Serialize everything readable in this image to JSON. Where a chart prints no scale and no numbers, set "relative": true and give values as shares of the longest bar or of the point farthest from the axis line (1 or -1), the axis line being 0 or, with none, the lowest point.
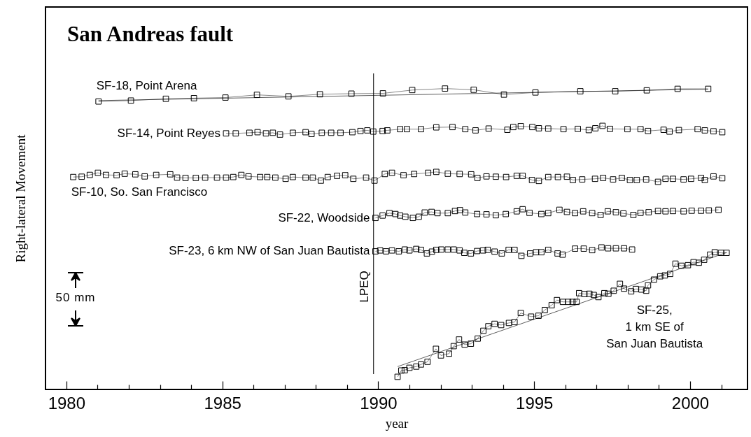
{
  "chart_data": {
    "type": "line",
    "title": "San Andreas fault",
    "xlabel": "year",
    "ylabel": "Right-lateral Movement",
    "relative": true,
    "marker": "square",
    "xlim": [
      1979.33,
      2001.84
    ],
    "xticks": [
      1980,
      {
        "value": 1981,
        "label": null
      },
      {
        "value": 1982,
        "label": null
      },
      {
        "value": 1983,
        "label": null
      },
      {
        "value": 1984,
        "label": null
      },
      1985,
      {
        "value": 1986,
        "label": null
      },
      {
        "value": 1987,
        "label": null
      },
      {
        "value": 1988,
        "label": null
      },
      {
        "value": 1989,
        "label": null
      },
      1990,
      {
        "value": 1991,
        "label": null
      },
      {
        "value": 1992,
        "label": null
      },
      {
        "value": 1993,
        "label": null
      },
      {
        "value": 1994,
        "label": null
      },
      1995,
      {
        "value": 1996,
        "label": null
      },
      {
        "value": 1997,
        "label": null
      },
      {
        "value": 1998,
        "label": null
      },
      {
        "value": 1999,
        "label": null
      },
      2000,
      {
        "value": 2001,
        "label": null
      }
    ],
    "ref_lines": [
      {
        "axis": "x",
        "value": 1989.85,
        "label": "LPEQ"
      }
    ],
    "annotations": [
      "50 mm"
    ],
    "series": [
      {
        "name": "SF-18, Point Arena",
        "color": "#000000",
        "x": [
          1981.03,
          1982.07,
          1983.19,
          1984.09,
          1985.1,
          1986.11,
          1987.12,
          1988.13,
          1989.14,
          1990.15,
          1991.09,
          1992.14,
          1993.06,
          1994.03,
          1995.04,
          1996.48,
          1997.6,
          1998.61,
          1999.6,
          2000.58
        ],
        "values": [
          0.957,
          0.96,
          0.966,
          0.968,
          0.97,
          0.979,
          0.974,
          0.981,
          0.983,
          0.984,
          0.995,
          1,
          0.996,
          0.98,
          0.987,
          0.991,
          0.991,
          0.994,
          0.999,
          0.999
        ]
      },
      {
        "name": "SF-14, Point Reyes",
        "color": "#000000",
        "x": [
          1985.12,
          1985.43,
          1985.87,
          1986.13,
          1986.4,
          1986.62,
          1986.85,
          1987.26,
          1987.67,
          1987.86,
          1988.19,
          1988.49,
          1988.79,
          1989.17,
          1989.43,
          1989.65,
          1989.84,
          1990.14,
          1990.29,
          1990.7,
          1990.92,
          1991.37,
          1991.86,
          1992.38,
          1992.79,
          1993.12,
          1993.54,
          1994.14,
          1994.33,
          1994.57,
          1994.94,
          1995.15,
          1995.45,
          1995.94,
          1996.4,
          1996.75,
          1996.96,
          1997.19,
          1997.43,
          1997.99,
          1998.41,
          1998.65,
          1999.15,
          1999.34,
          1999.64,
          2000.24,
          2000.47,
          2000.75,
          2001.03
        ],
        "values": [
          0.851,
          0.851,
          0.853,
          0.855,
          0.851,
          0.853,
          0.847,
          0.853,
          0.855,
          0.849,
          0.853,
          0.853,
          0.853,
          0.855,
          0.859,
          0.861,
          0.857,
          0.859,
          0.861,
          0.865,
          0.865,
          0.865,
          0.871,
          0.872,
          0.865,
          0.861,
          0.867,
          0.863,
          0.872,
          0.875,
          0.872,
          0.868,
          0.867,
          0.865,
          0.866,
          0.862,
          0.868,
          0.876,
          0.866,
          0.865,
          0.865,
          0.859,
          0.863,
          0.857,
          0.862,
          0.865,
          0.861,
          0.858,
          0.855
        ]
      },
      {
        "name": "SF-10, So. San Francisco",
        "color": "#000000",
        "x": [
          1980.22,
          1980.49,
          1980.75,
          1981.01,
          1981.27,
          1981.61,
          1981.87,
          1982.21,
          1982.51,
          1982.88,
          1983.33,
          1983.55,
          1983.82,
          1984.15,
          1984.45,
          1984.83,
          1985.12,
          1985.35,
          1985.61,
          1985.84,
          1986.21,
          1986.44,
          1986.7,
          1987.03,
          1987.26,
          1987.67,
          1987.9,
          1988.16,
          1988.38,
          1988.68,
          1988.94,
          1989.2,
          1989.61,
          1989.88,
          1990.21,
          1990.44,
          1990.81,
          1991.15,
          1991.6,
          1991.86,
          1992.23,
          1992.61,
          1992.98,
          1993.18,
          1993.47,
          1993.77,
          1994.1,
          1994.44,
          1994.63,
          1994.93,
          1995.15,
          1995.45,
          1995.76,
          1996.05,
          1996.24,
          1996.54,
          1996.95,
          1997.21,
          1997.53,
          1997.81,
          1998.07,
          1998.29,
          1998.59,
          1998.97,
          1999.21,
          1999.45,
          1999.79,
          2000.03,
          2000.35,
          2000.47,
          2000.75,
          2001.03
        ],
        "values": [
          0.706,
          0.707,
          0.713,
          0.72,
          0.713,
          0.712,
          0.717,
          0.715,
          0.708,
          0.713,
          0.715,
          0.704,
          0.703,
          0.703,
          0.704,
          0.704,
          0.704,
          0.706,
          0.713,
          0.708,
          0.706,
          0.706,
          0.704,
          0.7,
          0.706,
          0.704,
          0.704,
          0.694,
          0.706,
          0.71,
          0.712,
          0.7,
          0.704,
          0.694,
          0.716,
          0.72,
          0.712,
          0.716,
          0.72,
          0.723,
          0.717,
          0.716,
          0.715,
          0.703,
          0.708,
          0.707,
          0.706,
          0.71,
          0.71,
          0.696,
          0.693,
          0.706,
          0.706,
          0.707,
          0.696,
          0.698,
          0.7,
          0.703,
          0.698,
          0.703,
          0.696,
          0.696,
          0.698,
          0.69,
          0.7,
          0.7,
          0.698,
          0.7,
          0.703,
          0.696,
          0.708,
          0.702
        ]
      },
      {
        "name": "SF-22, Woodside",
        "color": "#000000",
        "x": [
          1989.91,
          1990.14,
          1990.36,
          1990.55,
          1990.7,
          1990.87,
          1991.11,
          1991.3,
          1991.49,
          1991.71,
          1991.9,
          1992.23,
          1992.46,
          1992.62,
          1992.79,
          1993.17,
          1993.47,
          1993.77,
          1994.09,
          1994.44,
          1994.63,
          1994.85,
          1995.23,
          1995.45,
          1995.81,
          1996.05,
          1996.31,
          1996.57,
          1996.86,
          1997.13,
          1997.36,
          1997.62,
          1997.86,
          1998.18,
          1998.41,
          1998.67,
          1998.97,
          1999.21,
          1999.45,
          1999.79,
          2000.05,
          2000.35,
          2000.6,
          2000.91
        ],
        "values": [
          0.57,
          0.578,
          0.586,
          0.583,
          0.578,
          0.574,
          0.57,
          0.574,
          0.588,
          0.59,
          0.586,
          0.586,
          0.593,
          0.596,
          0.588,
          0.583,
          0.582,
          0.579,
          0.583,
          0.592,
          0.599,
          0.587,
          0.583,
          0.586,
          0.597,
          0.59,
          0.586,
          0.592,
          0.586,
          0.58,
          0.592,
          0.589,
          0.585,
          0.58,
          0.587,
          0.589,
          0.593,
          0.592,
          0.593,
          0.592,
          0.594,
          0.594,
          0.595,
          0.597
        ]
      },
      {
        "name": "SF-23, 6 km NW of San Juan Bautista",
        "color": "#000000",
        "x": [
          1989.91,
          1990.06,
          1990.25,
          1990.44,
          1990.66,
          1990.85,
          1991,
          1991.22,
          1991.37,
          1991.56,
          1991.72,
          1991.86,
          1992.02,
          1992.23,
          1992.42,
          1992.61,
          1992.76,
          1992.97,
          1993.17,
          1993.36,
          1993.51,
          1993.73,
          1993.96,
          1994.18,
          1994.37,
          1994.59,
          1994.87,
          1995.06,
          1995.23,
          1995.45,
          1995.75,
          1995.91,
          1996.31,
          1996.59,
          1996.86,
          1997.16,
          1997.37,
          1997.62,
          1997.88,
          1998.14
        ],
        "values": [
          0.459,
          0.462,
          0.459,
          0.462,
          0.459,
          0.465,
          0.462,
          0.467,
          0.464,
          0.452,
          0.458,
          0.464,
          0.465,
          0.465,
          0.465,
          0.462,
          0.454,
          0.452,
          0.46,
          0.462,
          0.464,
          0.458,
          0.452,
          0.464,
          0.464,
          0.444,
          0.452,
          0.456,
          0.456,
          0.464,
          0.452,
          0.448,
          0.468,
          0.468,
          0.463,
          0.472,
          0.469,
          0.469,
          0.469,
          0.465
        ]
      },
      {
        "name": "SF-25,\n1 km SE of\nSan Juan Bautista",
        "color": "#000000",
        "x": [
          1990.62,
          1990.74,
          1990.85,
          1991,
          1991.22,
          1991.37,
          1991.58,
          1991.85,
          1992.01,
          1992.27,
          1992.42,
          1992.59,
          1992.77,
          1992.97,
          1993.19,
          1993.37,
          1993.53,
          1993.73,
          1993.94,
          1994.19,
          1994.37,
          1994.57,
          1994.9,
          1995.14,
          1995.34,
          1995.56,
          1995.73,
          1995.92,
          1996.09,
          1996.23,
          1996.36,
          1996.44,
          1996.61,
          1996.77,
          1996.91,
          1997.06,
          1997.25,
          1997.38,
          1997.55,
          1997.75,
          1997.88,
          1998.11,
          1998.26,
          1998.44,
          1998.59,
          1998.65,
          1998.84,
          1999.04,
          1999.19,
          1999.36,
          1999.53,
          1999.72,
          1999.93,
          2000.11,
          2000.28,
          2000.45,
          2000.64,
          2000.79,
          2000.99,
          2001.17
        ],
        "values": [
          0.042,
          0.063,
          0.064,
          0.072,
          0.076,
          0.083,
          0.092,
          0.135,
          0.113,
          0.119,
          0.144,
          0.166,
          0.149,
          0.152,
          0.169,
          0.195,
          0.21,
          0.218,
          0.214,
          0.221,
          0.224,
          0.254,
          0.242,
          0.245,
          0.264,
          0.28,
          0.297,
          0.291,
          0.291,
          0.291,
          0.291,
          0.32,
          0.317,
          0.318,
          0.314,
          0.307,
          0.32,
          0.318,
          0.328,
          0.351,
          0.335,
          0.326,
          0.334,
          0.332,
          0.328,
          0.346,
          0.365,
          0.376,
          0.379,
          0.384,
          0.418,
          0.411,
          0.413,
          0.423,
          0.421,
          0.431,
          0.448,
          0.456,
          0.454,
          0.454
        ]
      },
      {
        "type": "line",
        "marker": "none",
        "color": "#000000",
        "x": [
          1981.03,
          2000.58
        ],
        "values": [
          0.96,
          0.998
        ]
      },
      {
        "type": "line",
        "marker": "none",
        "color": "#000000",
        "x": [
          1990.62,
          2001.17
        ],
        "values": [
          0.076,
          0.455
        ]
      }
    ]
  }
}
